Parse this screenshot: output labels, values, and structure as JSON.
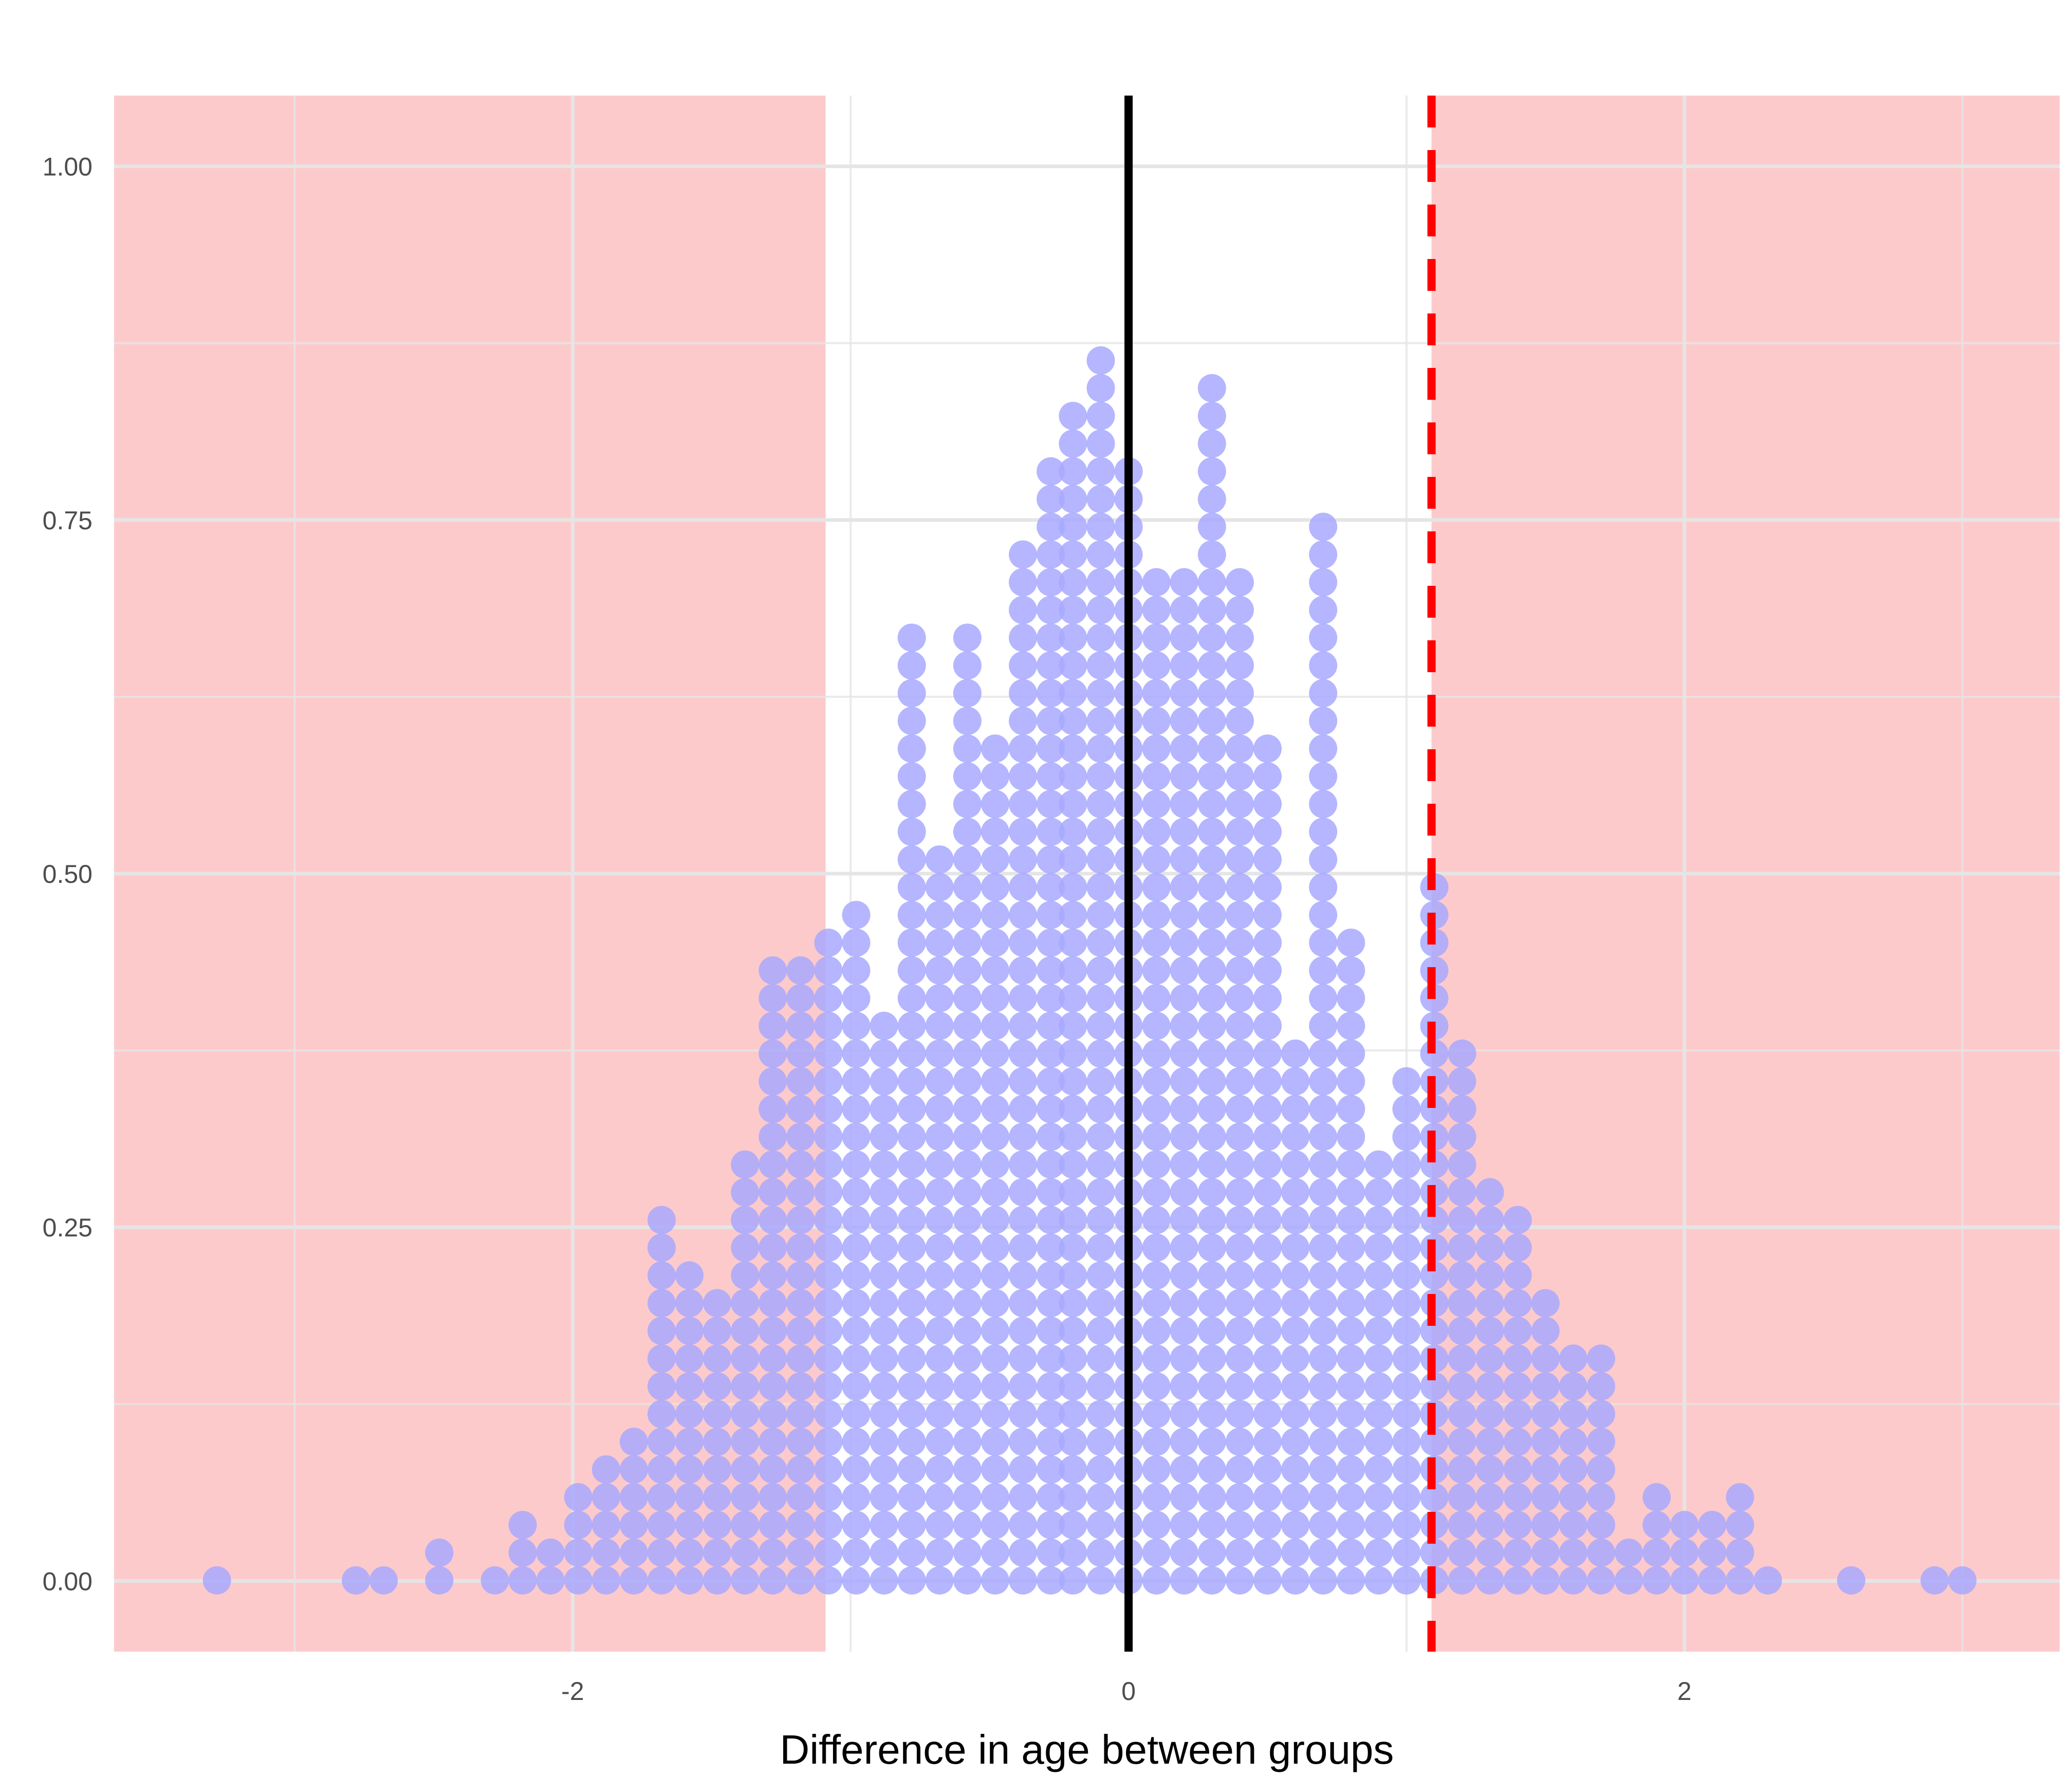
{
  "chart_data": {
    "type": "dotplot",
    "xlabel": "Difference in age between groups",
    "ylabel": "",
    "title": "",
    "xlim": [
      -3.65,
      3.35
    ],
    "ylim": [
      -0.05,
      1.05
    ],
    "x_ticks": [
      -2,
      0,
      2
    ],
    "x_tick_labels": [
      "-2",
      "0",
      "2"
    ],
    "y_ticks": [
      0,
      0.25,
      0.5,
      0.75,
      1.0
    ],
    "y_tick_labels": [
      "0.00",
      "0.25",
      "0.50",
      "0.75",
      "1.00"
    ],
    "grid": true,
    "dot_stack_step": 0.0196,
    "dot_bin_width": 0.1,
    "observed_difference": 1.09,
    "null_value": 0,
    "rejection_regions": [
      {
        "from": -3.65,
        "to": -1.09
      },
      {
        "from": 1.09,
        "to": 3.35
      }
    ],
    "stacks": [
      {
        "x": -3.28,
        "n": 1
      },
      {
        "x": -2.78,
        "n": 1
      },
      {
        "x": -2.68,
        "n": 1
      },
      {
        "x": -2.48,
        "n": 2
      },
      {
        "x": -2.28,
        "n": 1
      },
      {
        "x": -2.18,
        "n": 3
      },
      {
        "x": -2.08,
        "n": 2
      },
      {
        "x": -1.98,
        "n": 4
      },
      {
        "x": -1.88,
        "n": 5
      },
      {
        "x": -1.78,
        "n": 6
      },
      {
        "x": -1.68,
        "n": 14
      },
      {
        "x": -1.58,
        "n": 12
      },
      {
        "x": -1.48,
        "n": 11
      },
      {
        "x": -1.38,
        "n": 16
      },
      {
        "x": -1.28,
        "n": 23
      },
      {
        "x": -1.18,
        "n": 23
      },
      {
        "x": -1.08,
        "n": 24
      },
      {
        "x": -0.98,
        "n": 25
      },
      {
        "x": -0.88,
        "n": 21
      },
      {
        "x": -0.78,
        "n": 35
      },
      {
        "x": -0.68,
        "n": 27
      },
      {
        "x": -0.58,
        "n": 35
      },
      {
        "x": -0.48,
        "n": 31
      },
      {
        "x": -0.38,
        "n": 38
      },
      {
        "x": -0.28,
        "n": 41
      },
      {
        "x": -0.2,
        "n": 43
      },
      {
        "x": -0.1,
        "n": 45
      },
      {
        "x": 0.0,
        "n": 41
      },
      {
        "x": 0.1,
        "n": 37
      },
      {
        "x": 0.2,
        "n": 37
      },
      {
        "x": 0.3,
        "n": 44
      },
      {
        "x": 0.4,
        "n": 37
      },
      {
        "x": 0.5,
        "n": 31
      },
      {
        "x": 0.6,
        "n": 20
      },
      {
        "x": 0.7,
        "n": 39
      },
      {
        "x": 0.8,
        "n": 24
      },
      {
        "x": 0.9,
        "n": 16
      },
      {
        "x": 1.0,
        "n": 19
      },
      {
        "x": 1.1,
        "n": 26
      },
      {
        "x": 1.2,
        "n": 20
      },
      {
        "x": 1.3,
        "n": 15
      },
      {
        "x": 1.4,
        "n": 14
      },
      {
        "x": 1.5,
        "n": 11
      },
      {
        "x": 1.6,
        "n": 9
      },
      {
        "x": 1.7,
        "n": 9
      },
      {
        "x": 1.8,
        "n": 2
      },
      {
        "x": 1.9,
        "n": 4
      },
      {
        "x": 2.0,
        "n": 3
      },
      {
        "x": 2.1,
        "n": 3
      },
      {
        "x": 2.2,
        "n": 4
      },
      {
        "x": 2.3,
        "n": 1
      },
      {
        "x": 2.6,
        "n": 1
      },
      {
        "x": 2.9,
        "n": 1
      },
      {
        "x": 3.0,
        "n": 1
      }
    ]
  },
  "colors": {
    "region": "#fdcacb",
    "dot": "#a8a9ff",
    "dot_opacity": 0.85,
    "grid": "#e5e5e5",
    "null_line": "#000000",
    "observed_line": "#ff0000"
  }
}
